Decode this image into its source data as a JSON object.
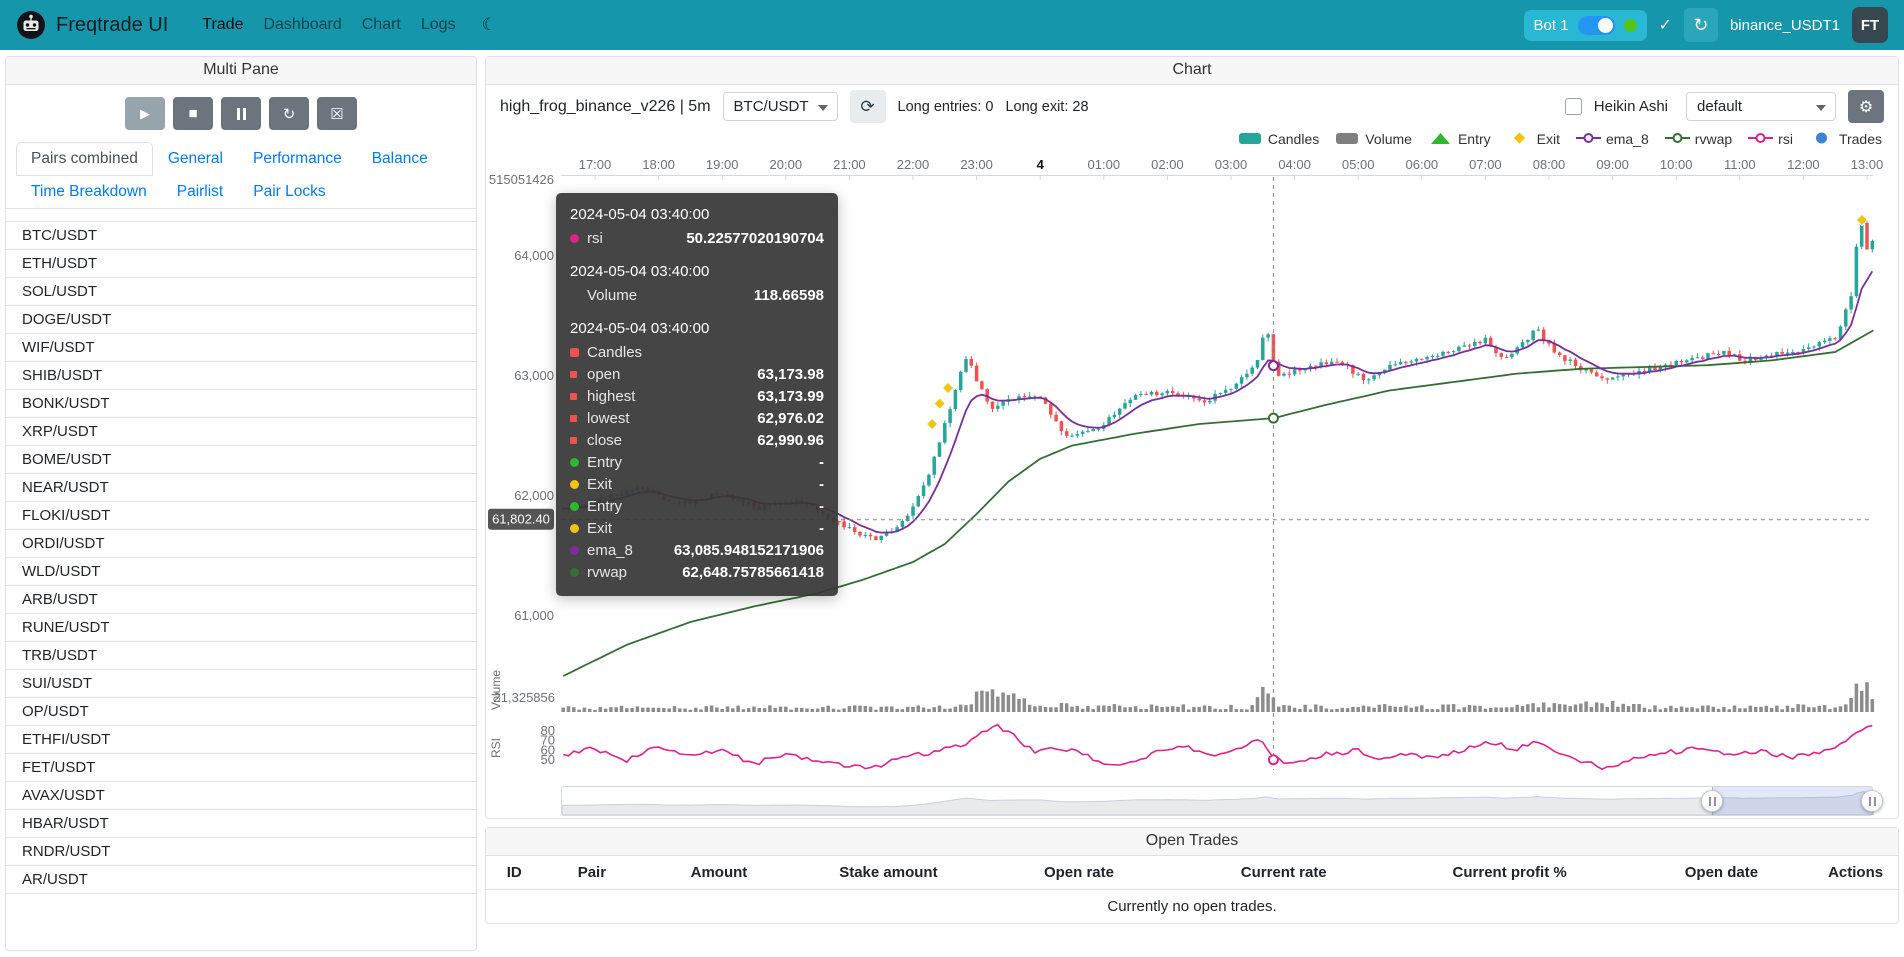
{
  "navbar": {
    "brand": "Freqtrade UI",
    "links": [
      {
        "label": "Trade",
        "active": true
      },
      {
        "label": "Dashboard",
        "active": false
      },
      {
        "label": "Chart",
        "active": false
      },
      {
        "label": "Logs",
        "active": false
      }
    ],
    "bot_chip": {
      "label": "Bot 1"
    },
    "bot_name": "binance_USDT1",
    "avatar": "FT"
  },
  "multi_pane": {
    "title": "Multi Pane",
    "tabs": [
      "Pairs combined",
      "General",
      "Performance",
      "Balance",
      "Time Breakdown",
      "Pairlist",
      "Pair Locks"
    ],
    "active_tab": "Pairs combined",
    "pairs": [
      "BTC/USDT",
      "ETH/USDT",
      "SOL/USDT",
      "DOGE/USDT",
      "WIF/USDT",
      "SHIB/USDT",
      "BONK/USDT",
      "XRP/USDT",
      "BOME/USDT",
      "NEAR/USDT",
      "FLOKI/USDT",
      "ORDI/USDT",
      "WLD/USDT",
      "ARB/USDT",
      "RUNE/USDT",
      "TRB/USDT",
      "SUI/USDT",
      "OP/USDT",
      "ETHFI/USDT",
      "FET/USDT",
      "AVAX/USDT",
      "HBAR/USDT",
      "RNDR/USDT",
      "AR/USDT"
    ]
  },
  "chart": {
    "title": "Chart",
    "strategy_label": "high_frog_binance_v226 | 5m",
    "pair": "BTC/USDT",
    "long_entries": "Long entries: 0",
    "long_exit": "Long exit: 28",
    "heikin_ashi": "Heikin Ashi",
    "plot_config": "default",
    "axis_pointer_price": "61,802.40",
    "legend": [
      {
        "label": "Candles",
        "type": "rect",
        "color": "#26a69a"
      },
      {
        "label": "Volume",
        "type": "rect",
        "color": "#7f7f7f"
      },
      {
        "label": "Entry",
        "type": "triangle",
        "color": "#2eb82e"
      },
      {
        "label": "Exit",
        "type": "diamond",
        "color": "#f1c40f"
      },
      {
        "label": "ema_8",
        "type": "line",
        "color": "#7b2d9e"
      },
      {
        "label": "rvwap",
        "type": "line",
        "color": "#356e35"
      },
      {
        "label": "rsi",
        "type": "line",
        "color": "#e0218a"
      },
      {
        "label": "Trades",
        "type": "circle",
        "color": "#3b82d9"
      }
    ],
    "tooltip": {
      "sections": [
        {
          "time": "2024-05-04 03:40:00",
          "rows": [
            {
              "marker": "circle",
              "color": "#e0218a",
              "label": "rsi",
              "value": "50.22577020190704"
            }
          ]
        },
        {
          "time": "2024-05-04 03:40:00",
          "rows": [
            {
              "marker": "none",
              "color": "",
              "label": "Volume",
              "value": "118.66598"
            }
          ]
        },
        {
          "time": "2024-05-04 03:40:00",
          "rows": [
            {
              "marker": "square",
              "color": "#ef5350",
              "label": "Candles",
              "value": ""
            },
            {
              "marker": "square-sm",
              "color": "#ef5350",
              "label": "open",
              "value": "63,173.98"
            },
            {
              "marker": "square-sm",
              "color": "#ef5350",
              "label": "highest",
              "value": "63,173.99"
            },
            {
              "marker": "square-sm",
              "color": "#ef5350",
              "label": "lowest",
              "value": "62,976.02"
            },
            {
              "marker": "square-sm",
              "color": "#ef5350",
              "label": "close",
              "value": "62,990.96"
            },
            {
              "marker": "circle",
              "color": "#2eb82e",
              "label": "Entry",
              "value": "-"
            },
            {
              "marker": "circle",
              "color": "#f1c40f",
              "label": "Exit",
              "value": "-"
            },
            {
              "marker": "circle",
              "color": "#2eb82e",
              "label": "Entry",
              "value": "-"
            },
            {
              "marker": "circle",
              "color": "#f1c40f",
              "label": "Exit",
              "value": "-"
            },
            {
              "marker": "circle",
              "color": "#7b2d9e",
              "label": "ema_8",
              "value": "63,085.948152171906"
            },
            {
              "marker": "circle",
              "color": "#356e35",
              "label": "rvwap",
              "value": "62,648.75785661418"
            }
          ]
        }
      ]
    }
  },
  "open_trades": {
    "title": "Open Trades",
    "columns": [
      "ID",
      "Pair",
      "Amount",
      "Stake amount",
      "Open rate",
      "Current rate",
      "Current profit %",
      "Open date",
      "Actions"
    ],
    "empty": "Currently no open trades."
  },
  "chart_data": {
    "type": "candlestick",
    "pair": "BTC/USDT",
    "timeframe": "5m",
    "x_start": "2024-05-03 16:30",
    "x_end": "2024-05-04 13:05",
    "x_tick_labels": [
      "17:00",
      "18:00",
      "19:00",
      "20:00",
      "21:00",
      "22:00",
      "23:00",
      "4",
      "01:00",
      "02:00",
      "03:00",
      "04:00",
      "05:00",
      "06:00",
      "07:00",
      "08:00",
      "09:00",
      "10:00",
      "11:00",
      "12:00",
      "13:00"
    ],
    "price_ticks": [
      64000,
      63000,
      62000,
      61000
    ],
    "top_axis_label": "515051426",
    "volume_axis_label": "21,325856",
    "rsi_ticks": [
      80,
      70,
      60,
      50
    ],
    "panes": [
      "price",
      "Volume",
      "RSI"
    ],
    "crosshair": {
      "time_hours": 10.667,
      "time_label": "03:40",
      "price": 61802.4
    },
    "hover_point": {
      "time": "2024-05-04 03:40:00",
      "open": 63173.98,
      "high": 63173.99,
      "low": 62976.02,
      "close": 62990.96,
      "volume": 118.66598,
      "rsi": 50.22577020190704,
      "ema_8": 63085.948152171906,
      "rvwap": 62648.75785661418
    },
    "colors": {
      "up": "#26a69a",
      "down": "#ef5350",
      "ema": "#7b2d9e",
      "rvwap": "#356e35",
      "rsi": "#e0218a",
      "volume": "#7f7f7f"
    },
    "candle_count": 248,
    "exit_markers": [
      [
        5.3,
        62600
      ],
      [
        5.42,
        62770
      ],
      [
        5.55,
        62900
      ],
      [
        19.92,
        64300
      ]
    ],
    "series": {
      "close_keyframes": [
        [
          -0.5,
          61900
        ],
        [
          0,
          61960
        ],
        [
          0.7,
          62080
        ],
        [
          1.3,
          61930
        ],
        [
          2.0,
          62030
        ],
        [
          2.6,
          61900
        ],
        [
          3.2,
          61960
        ],
        [
          3.7,
          61820
        ],
        [
          4.1,
          61700
        ],
        [
          4.4,
          61640
        ],
        [
          4.7,
          61720
        ],
        [
          4.95,
          61850
        ],
        [
          5.2,
          62100
        ],
        [
          5.45,
          62500
        ],
        [
          5.7,
          62950
        ],
        [
          5.85,
          63150
        ],
        [
          6.05,
          62900
        ],
        [
          6.25,
          62720
        ],
        [
          6.6,
          62820
        ],
        [
          7.0,
          62830
        ],
        [
          7.4,
          62500
        ],
        [
          7.9,
          62570
        ],
        [
          8.6,
          62870
        ],
        [
          9.1,
          62850
        ],
        [
          9.6,
          62790
        ],
        [
          10.1,
          62940
        ],
        [
          10.4,
          63120
        ],
        [
          10.55,
          63440
        ],
        [
          10.65,
          63170
        ],
        [
          10.75,
          62990
        ],
        [
          11.1,
          63050
        ],
        [
          11.7,
          63130
        ],
        [
          12.1,
          62960
        ],
        [
          12.6,
          63100
        ],
        [
          13.1,
          63160
        ],
        [
          13.6,
          63240
        ],
        [
          14.0,
          63300
        ],
        [
          14.3,
          63130
        ],
        [
          14.8,
          63390
        ],
        [
          15.1,
          63200
        ],
        [
          15.5,
          63060
        ],
        [
          15.9,
          62950
        ],
        [
          16.5,
          63050
        ],
        [
          17.1,
          63120
        ],
        [
          17.7,
          63200
        ],
        [
          18.1,
          63130
        ],
        [
          18.6,
          63190
        ],
        [
          19.0,
          63210
        ],
        [
          19.5,
          63310
        ],
        [
          19.75,
          63650
        ],
        [
          19.88,
          64350
        ],
        [
          20.0,
          64060
        ],
        [
          20.1,
          64160
        ]
      ],
      "rvwap_keyframes": [
        [
          -0.5,
          60500
        ],
        [
          0.5,
          60760
        ],
        [
          1.5,
          60950
        ],
        [
          2.5,
          61080
        ],
        [
          3.5,
          61190
        ],
        [
          4.2,
          61300
        ],
        [
          5.0,
          61450
        ],
        [
          5.5,
          61600
        ],
        [
          6.0,
          61850
        ],
        [
          6.5,
          62120
        ],
        [
          7.0,
          62310
        ],
        [
          7.5,
          62420
        ],
        [
          8.5,
          62520
        ],
        [
          9.5,
          62600
        ],
        [
          10.67,
          62648.76
        ],
        [
          11.5,
          62760
        ],
        [
          12.5,
          62880
        ],
        [
          13.5,
          62950
        ],
        [
          14.5,
          63020
        ],
        [
          15.5,
          63060
        ],
        [
          16.5,
          63075
        ],
        [
          17.5,
          63090
        ],
        [
          18.5,
          63130
        ],
        [
          19.5,
          63200
        ],
        [
          20.1,
          63380
        ]
      ],
      "rsi_keyframes": [
        [
          -0.5,
          55
        ],
        [
          0,
          62
        ],
        [
          0.5,
          50
        ],
        [
          1,
          64
        ],
        [
          1.5,
          55
        ],
        [
          2,
          60
        ],
        [
          2.5,
          46
        ],
        [
          3,
          56
        ],
        [
          3.5,
          50
        ],
        [
          4,
          44
        ],
        [
          4.4,
          42
        ],
        [
          4.8,
          52
        ],
        [
          5.3,
          58
        ],
        [
          5.8,
          66
        ],
        [
          6.1,
          78
        ],
        [
          6.35,
          85
        ],
        [
          6.6,
          74
        ],
        [
          6.9,
          58
        ],
        [
          7.3,
          63
        ],
        [
          7.7,
          55
        ],
        [
          8.1,
          44
        ],
        [
          8.5,
          47
        ],
        [
          8.9,
          60
        ],
        [
          9.3,
          64
        ],
        [
          9.7,
          55
        ],
        [
          10.1,
          60
        ],
        [
          10.45,
          72
        ],
        [
          10.67,
          50.2
        ],
        [
          11.0,
          47
        ],
        [
          11.5,
          56
        ],
        [
          12.0,
          60
        ],
        [
          12.3,
          50
        ],
        [
          12.7,
          58
        ],
        [
          13.2,
          52
        ],
        [
          13.7,
          62
        ],
        [
          14.1,
          68
        ],
        [
          14.5,
          60
        ],
        [
          14.8,
          72
        ],
        [
          15.1,
          56
        ],
        [
          15.5,
          48
        ],
        [
          15.9,
          42
        ],
        [
          16.4,
          52
        ],
        [
          16.9,
          58
        ],
        [
          17.4,
          62
        ],
        [
          17.9,
          55
        ],
        [
          18.3,
          60
        ],
        [
          18.8,
          52
        ],
        [
          19.2,
          57
        ],
        [
          19.6,
          65
        ],
        [
          19.85,
          80
        ],
        [
          20.0,
          86
        ],
        [
          20.1,
          83
        ]
      ],
      "volume_factor_keyframes": [
        [
          -0.5,
          1
        ],
        [
          5.5,
          1
        ],
        [
          5.9,
          2.5
        ],
        [
          6.2,
          4.5
        ],
        [
          6.5,
          3
        ],
        [
          6.9,
          2
        ],
        [
          7.5,
          1.2
        ],
        [
          10.3,
          1.2
        ],
        [
          10.5,
          5.5
        ],
        [
          10.7,
          2.5
        ],
        [
          11.0,
          1.2
        ],
        [
          14.6,
          1.2
        ],
        [
          14.8,
          1.8
        ],
        [
          15.2,
          1.2
        ],
        [
          15.9,
          1.9
        ],
        [
          16.2,
          1.2
        ],
        [
          19.5,
          1.2
        ],
        [
          19.8,
          4
        ],
        [
          19.95,
          6
        ],
        [
          20.1,
          5
        ]
      ]
    }
  }
}
